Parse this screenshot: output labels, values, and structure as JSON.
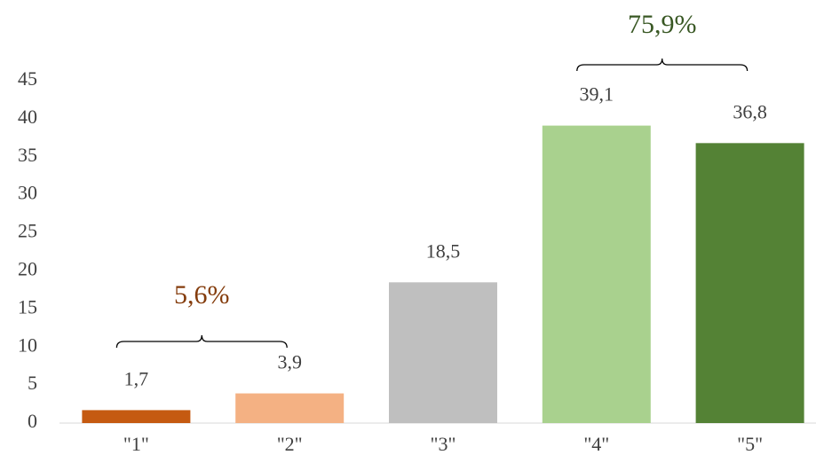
{
  "chart_data": {
    "type": "bar",
    "categories": [
      "\"1\"",
      "\"2\"",
      "\"3\"",
      "\"4\"",
      "\"5\""
    ],
    "values": [
      1.7,
      3.9,
      18.5,
      39.1,
      36.8
    ],
    "value_labels": [
      "1,7",
      "3,9",
      "18,5",
      "39,1",
      "36,8"
    ],
    "colors": [
      "#c55a11",
      "#f4b183",
      "#bfbfbf",
      "#a9d18e",
      "#548235"
    ],
    "ylim": [
      0,
      45
    ],
    "yticks": [
      0,
      5,
      10,
      15,
      20,
      25,
      30,
      35,
      40,
      45
    ],
    "grid": false,
    "annotations": [
      {
        "text": "5,6%",
        "color": "#843c0c"
      },
      {
        "text": "75,9%",
        "color": "#385723"
      }
    ]
  }
}
